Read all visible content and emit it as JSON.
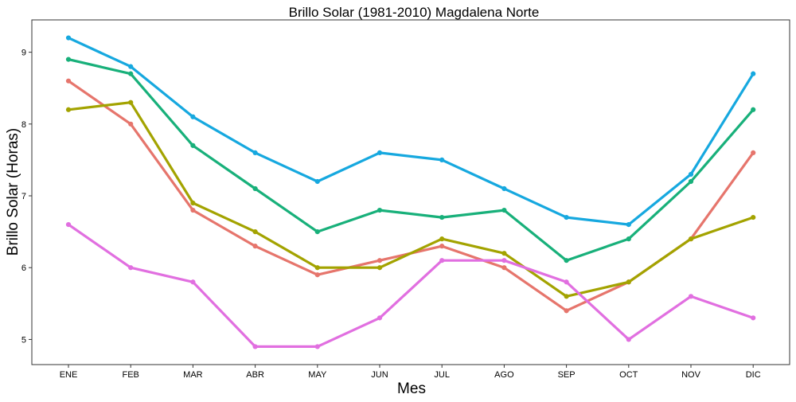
{
  "chart_data": {
    "type": "line",
    "title": "Brillo Solar (1981-2010)  Magdalena Norte",
    "xlabel": "Mes",
    "ylabel": "Brillo Solar (Horas)",
    "categories": [
      "ENE",
      "FEB",
      "MAR",
      "ABR",
      "MAY",
      "JUN",
      "JUL",
      "AGO",
      "SEP",
      "OCT",
      "NOV",
      "DIC"
    ],
    "ylim": [
      4.65,
      9.45
    ],
    "yticks": [
      5,
      6,
      7,
      8,
      9
    ],
    "grid": false,
    "legend": "none",
    "series": [
      {
        "color": "#E6756C",
        "values": [
          8.6,
          8.0,
          6.8,
          6.3,
          5.9,
          6.1,
          6.3,
          6.0,
          5.4,
          5.8,
          6.4,
          7.6
        ]
      },
      {
        "color": "#A3A300",
        "values": [
          8.2,
          8.3,
          6.9,
          6.5,
          6.0,
          6.0,
          6.4,
          6.2,
          5.6,
          5.8,
          6.4,
          6.7
        ]
      },
      {
        "color": "#18B07A",
        "values": [
          8.9,
          8.7,
          7.7,
          7.1,
          6.5,
          6.8,
          6.7,
          6.8,
          6.1,
          6.4,
          7.2,
          8.2
        ]
      },
      {
        "color": "#16A8DF",
        "values": [
          9.2,
          8.8,
          8.1,
          7.6,
          7.2,
          7.6,
          7.5,
          7.1,
          6.7,
          6.6,
          7.3,
          8.7
        ]
      },
      {
        "color": "#E16FE0",
        "values": [
          6.6,
          6.0,
          5.8,
          4.9,
          4.9,
          5.3,
          6.1,
          6.1,
          5.8,
          5.0,
          5.6,
          5.3
        ]
      }
    ]
  }
}
